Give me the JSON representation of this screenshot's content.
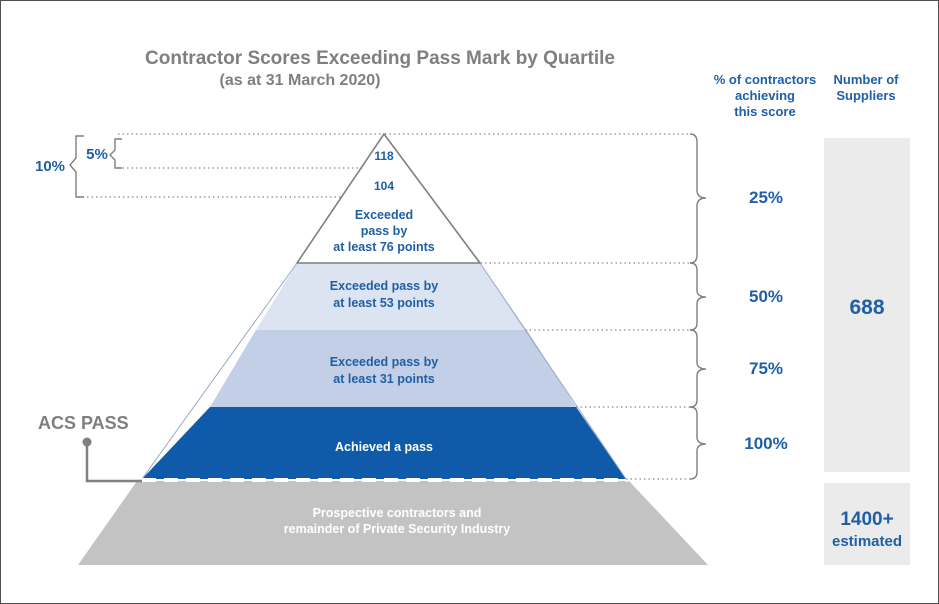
{
  "title": "Contractor Scores Exceeding Pass Mark by Quartile",
  "subtitle": "(as at 31 March 2020)",
  "headers": {
    "percent": [
      "% of contractors",
      "achieving",
      "this score"
    ],
    "suppliers": [
      "Number of",
      "Suppliers"
    ]
  },
  "left_brackets": {
    "outer": "10%",
    "inner": "5%"
  },
  "pyramid": {
    "apex_scores": [
      "118",
      "104"
    ],
    "tier1": [
      "Exceeded",
      "pass by",
      "at least 76 points"
    ],
    "tier2": [
      "Exceeded pass by",
      "at least 53 points"
    ],
    "tier3": [
      "Exceeded pass by",
      "at least 31 points"
    ],
    "tier4": "Achieved a pass",
    "base": [
      "Prospective contractors and",
      "remainder of Private Security Industry"
    ]
  },
  "acs_label": "ACS PASS",
  "percentages": [
    "25%",
    "50%",
    "75%",
    "100%"
  ],
  "suppliers": {
    "count": "688",
    "estimate": [
      "1400+",
      "estimated"
    ]
  },
  "colors": {
    "tier_top": "#ffffff",
    "tier2": "#dde4f1",
    "tier3": "#c2cfe6",
    "tier4": "#0f5aa9",
    "base": "#c3c3c3",
    "accent_text": "#1f5fa6",
    "grey_text": "#7f7f7f"
  }
}
